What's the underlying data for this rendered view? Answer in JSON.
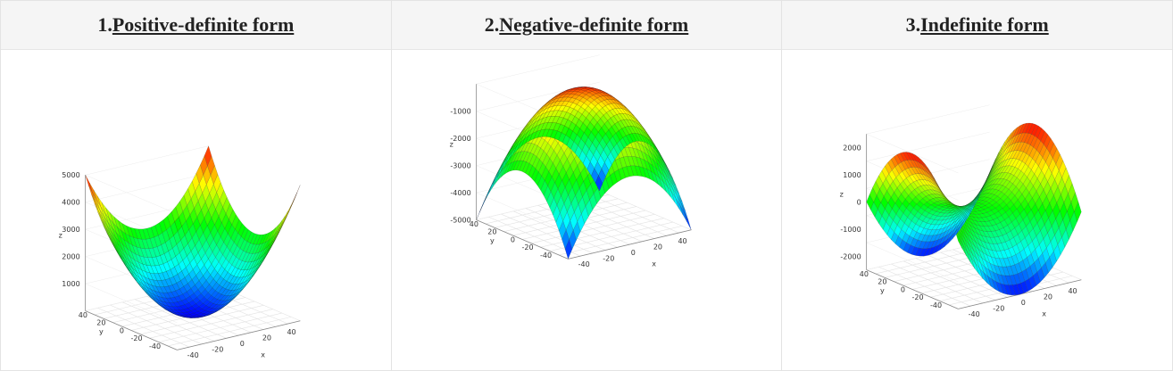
{
  "chart_data": [
    {
      "type": "surface",
      "number": "1.",
      "title": "Positive-definite form",
      "function": "x^2 + y^2",
      "xlabel": "x",
      "ylabel": "y",
      "zlabel": "z",
      "x_ticks": [
        "-40",
        "-20",
        "0",
        "20",
        "40"
      ],
      "y_ticks": [
        "-40",
        "-20",
        "0",
        "20",
        "40"
      ],
      "z_ticks": [
        "1000",
        "2000",
        "3000",
        "4000",
        "5000"
      ],
      "x_range": [
        -50,
        50
      ],
      "y_range": [
        -50,
        50
      ],
      "z_range": [
        0,
        5000
      ],
      "colorscale": [
        "#0000ff",
        "#00ffff",
        "#00ff00",
        "#ffff00",
        "#ff0000"
      ]
    },
    {
      "type": "surface",
      "number": "2.",
      "title": "Negative-definite form",
      "function": "-(x^2 + y^2)",
      "xlabel": "x",
      "ylabel": "y",
      "zlabel": "z",
      "x_ticks": [
        "-40",
        "-20",
        "0",
        "20",
        "40"
      ],
      "y_ticks": [
        "-40",
        "-20",
        "0",
        "20",
        "40"
      ],
      "z_ticks": [
        "-5000",
        "-4000",
        "-3000",
        "-2000",
        "-1000"
      ],
      "x_range": [
        -50,
        50
      ],
      "y_range": [
        -50,
        50
      ],
      "z_range": [
        -5000,
        0
      ],
      "colorscale": [
        "#0000ff",
        "#00ffff",
        "#00ff00",
        "#ffff00",
        "#ff0000"
      ]
    },
    {
      "type": "surface",
      "number": "3.",
      "title": "Indefinite form",
      "function": "x^2 - y^2",
      "xlabel": "x",
      "ylabel": "y",
      "zlabel": "z",
      "x_ticks": [
        "-40",
        "-20",
        "0",
        "20",
        "40"
      ],
      "y_ticks": [
        "-40",
        "-20",
        "0",
        "20",
        "40"
      ],
      "z_ticks": [
        "-2000",
        "-1000",
        "0",
        "1000",
        "2000"
      ],
      "x_range": [
        -50,
        50
      ],
      "y_range": [
        -50,
        50
      ],
      "z_range": [
        -2500,
        2500
      ],
      "colorscale": [
        "#0000ff",
        "#00ffff",
        "#00ff00",
        "#ffff00",
        "#ff0000"
      ]
    }
  ]
}
